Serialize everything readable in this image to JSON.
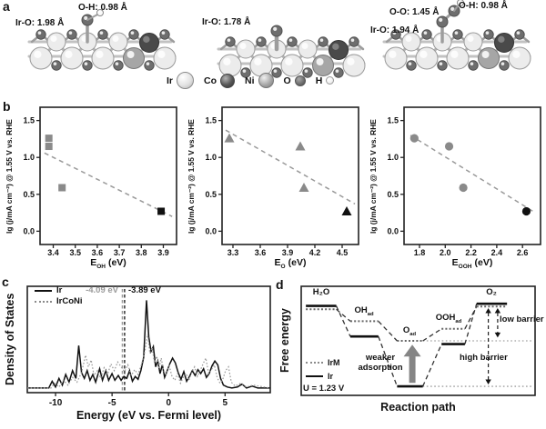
{
  "colors": {
    "point_gray": "#8a8a8a",
    "point_black": "#111111",
    "trend": "#999999",
    "frame": "#222222",
    "dos_ir": "#111111",
    "dos_ircon": "#999999",
    "annotation_gray": "#9a9a9a",
    "arrow_gray": "#858585"
  },
  "panel_a": {
    "label": "a",
    "structures": [
      {
        "adsorbate": "OH",
        "labels": [
          "O-H: 0.98 Å",
          "Ir-O: 1.98 Å"
        ]
      },
      {
        "adsorbate": "O",
        "labels": [
          "Ir-O: 1.78 Å"
        ]
      },
      {
        "adsorbate": "OOH",
        "labels": [
          "O-O: 1.45 Å",
          "O-H: 0.98 Å",
          "Ir-O: 1.94 Å"
        ]
      }
    ],
    "legend": [
      {
        "symbol": "Ir"
      },
      {
        "symbol": "Co"
      },
      {
        "symbol": "Ni"
      },
      {
        "symbol": "O"
      },
      {
        "symbol": "H"
      }
    ]
  },
  "panel_b": {
    "label": "b",
    "ylabel": "lg (j/mA cm⁻²) @ 1.55 V vs. RHE",
    "plots": [
      {
        "xlabel": {
          "main": "E",
          "sub": "OH",
          "unit": "(eV)"
        }
      },
      {
        "xlabel": {
          "main": "E",
          "sub": "O",
          "unit": "(eV)"
        }
      },
      {
        "xlabel": {
          "main": "E",
          "sub": "OOH",
          "unit": "(eV)"
        }
      }
    ]
  },
  "panel_c": {
    "label": "c",
    "xlabel": "Energy (eV vs. Fermi level)",
    "ylabel": "Density of States",
    "legend": [
      "Ir",
      "IrCoNi"
    ],
    "annotations": [
      "-4.09 eV",
      "-3.89 eV"
    ]
  },
  "panel_d": {
    "label": "d",
    "xlabel": "Reaction path",
    "ylabel": "Free energy",
    "legend": [
      {
        "label": "IrM"
      },
      {
        "label": "Ir"
      }
    ],
    "potential": "U = 1.23 V",
    "species": [
      {
        "main": "H₂O",
        "sub": ""
      },
      {
        "main": "OH",
        "sub": "ad"
      },
      {
        "main": "O",
        "sub": "ad"
      },
      {
        "main": "OOH",
        "sub": "ad"
      },
      {
        "main": "O₂",
        "sub": ""
      }
    ],
    "annotations": {
      "weaker": "weaker adsorption",
      "low": "low barrier",
      "high": "high barrier"
    }
  },
  "chart_data": [
    {
      "id": "scatter-eoh",
      "type": "scatter",
      "marker": "square",
      "xlabel": "E_OH (eV)",
      "ylabel": "lg (j/mA cm-2) @ 1.55 V vs. RHE",
      "xlim": [
        3.34,
        3.96
      ],
      "ylim": [
        -0.18,
        1.68
      ],
      "xticks": [
        3.4,
        3.5,
        3.6,
        3.7,
        3.8,
        3.9
      ],
      "yticks": [
        0.0,
        0.5,
        1.0,
        1.5
      ],
      "points": [
        {
          "x": 3.38,
          "y": 1.26,
          "color": "gray"
        },
        {
          "x": 3.38,
          "y": 1.15,
          "color": "gray"
        },
        {
          "x": 3.44,
          "y": 0.59,
          "color": "gray"
        },
        {
          "x": 3.89,
          "y": 0.27,
          "color": "black"
        }
      ],
      "trend": {
        "x1": 3.36,
        "y1": 1.06,
        "x2": 3.94,
        "y2": 0.2
      }
    },
    {
      "id": "scatter-eo",
      "type": "scatter",
      "marker": "triangle",
      "xlabel": "E_O (eV)",
      "ylabel": "lg (j/mA cm-2) @ 1.55 V vs. RHE",
      "xlim": [
        3.18,
        4.68
      ],
      "ylim": [
        -0.18,
        1.68
      ],
      "xticks": [
        3.3,
        3.6,
        3.9,
        4.2,
        4.5
      ],
      "yticks": [
        0.0,
        0.5,
        1.0,
        1.5
      ],
      "points": [
        {
          "x": 3.26,
          "y": 1.26,
          "color": "gray"
        },
        {
          "x": 4.04,
          "y": 1.15,
          "color": "gray"
        },
        {
          "x": 4.08,
          "y": 0.59,
          "color": "gray"
        },
        {
          "x": 4.55,
          "y": 0.27,
          "color": "black"
        }
      ],
      "trend": {
        "x1": 3.22,
        "y1": 1.37,
        "x2": 4.64,
        "y2": 0.37
      }
    },
    {
      "id": "scatter-eooh",
      "type": "scatter",
      "marker": "circle",
      "xlabel": "E_OOH (eV)",
      "ylabel": "lg (j/mA cm-2) @ 1.55 V vs. RHE",
      "xlim": [
        1.68,
        2.74
      ],
      "ylim": [
        -0.18,
        1.68
      ],
      "xticks": [
        1.8,
        2.0,
        2.2,
        2.4,
        2.6
      ],
      "yticks": [
        0.0,
        0.5,
        1.0,
        1.5
      ],
      "points": [
        {
          "x": 1.76,
          "y": 1.26,
          "color": "gray"
        },
        {
          "x": 2.03,
          "y": 1.15,
          "color": "gray"
        },
        {
          "x": 2.14,
          "y": 0.59,
          "color": "gray"
        },
        {
          "x": 2.63,
          "y": 0.27,
          "color": "black"
        }
      ],
      "trend": {
        "x1": 1.73,
        "y1": 1.3,
        "x2": 2.68,
        "y2": 0.27
      }
    },
    {
      "id": "dos",
      "type": "line",
      "xlabel": "Energy (eV vs. Fermi level)",
      "ylabel": "Density of States",
      "xlim": [
        -12.5,
        9
      ],
      "xticks": [
        -10,
        -5,
        0,
        5
      ],
      "vlines": [
        {
          "x": -4.09,
          "color": "#9a9a9a",
          "label": "-4.09 eV"
        },
        {
          "x": -3.89,
          "color": "#222222",
          "label": "-3.89 eV"
        }
      ],
      "series": [
        {
          "name": "Ir",
          "style": "solid",
          "points": [
            [
              -12.5,
              0.02
            ],
            [
              -10.6,
              0.02
            ],
            [
              -10.3,
              0.09
            ],
            [
              -10,
              0.03
            ],
            [
              -9.7,
              0.12
            ],
            [
              -9.4,
              0.05
            ],
            [
              -9.1,
              0.16
            ],
            [
              -8.8,
              0.08
            ],
            [
              -8.5,
              0.2
            ],
            [
              -8.2,
              0.12
            ],
            [
              -7.95,
              0.46
            ],
            [
              -7.7,
              0.18
            ],
            [
              -7.45,
              0.12
            ],
            [
              -7.2,
              0.2
            ],
            [
              -6.95,
              0.1
            ],
            [
              -6.7,
              0.16
            ],
            [
              -6.45,
              0.08
            ],
            [
              -6.1,
              0.22
            ],
            [
              -5.85,
              0.1
            ],
            [
              -5.55,
              0.2
            ],
            [
              -5.3,
              0.1
            ],
            [
              -5,
              0.17
            ],
            [
              -4.75,
              0.1
            ],
            [
              -4.45,
              0.15
            ],
            [
              -4.2,
              0.1
            ],
            [
              -3.95,
              0.14
            ],
            [
              -3.7,
              0.12
            ],
            [
              -3.45,
              0.2
            ],
            [
              -3.2,
              0.09
            ],
            [
              -2.95,
              0.14
            ],
            [
              -2.7,
              0.11
            ],
            [
              -2.45,
              0.2
            ],
            [
              -2.2,
              0.34
            ],
            [
              -1.95,
              0.93
            ],
            [
              -1.75,
              0.55
            ],
            [
              -1.55,
              0.4
            ],
            [
              -1.35,
              0.45
            ],
            [
              -1.15,
              0.24
            ],
            [
              -0.95,
              0.3
            ],
            [
              -0.75,
              0.17
            ],
            [
              -0.55,
              0.26
            ],
            [
              -0.35,
              0.13
            ],
            [
              -0.15,
              0.19
            ],
            [
              0.1,
              0.27
            ],
            [
              0.35,
              0.33
            ],
            [
              0.6,
              0.28
            ],
            [
              0.85,
              0.18
            ],
            [
              1.1,
              0.11
            ],
            [
              1.35,
              0.19
            ],
            [
              1.6,
              0.09
            ],
            [
              1.85,
              0.14
            ],
            [
              2.1,
              0.2
            ],
            [
              2.35,
              0.15
            ],
            [
              2.6,
              0.21
            ],
            [
              2.85,
              0.17
            ],
            [
              3.1,
              0.22
            ],
            [
              3.35,
              0.13
            ],
            [
              3.6,
              0.17
            ],
            [
              3.85,
              0.25
            ],
            [
              4.1,
              0.3
            ],
            [
              4.35,
              0.26
            ],
            [
              4.6,
              0.12
            ],
            [
              4.85,
              0.05
            ],
            [
              5.2,
              0.03
            ],
            [
              5.6,
              0.02
            ],
            [
              6.1,
              0.03
            ],
            [
              6.5,
              0.06
            ],
            [
              6.9,
              0.02
            ],
            [
              7.4,
              0.04
            ],
            [
              7.9,
              0.02
            ],
            [
              8.95,
              0.02
            ]
          ]
        },
        {
          "name": "IrCoNi",
          "style": "dotted",
          "points": [
            [
              -12.5,
              0.02
            ],
            [
              -10.4,
              0.02
            ],
            [
              -10.1,
              0.07
            ],
            [
              -9.7,
              0.03
            ],
            [
              -9.3,
              0.1
            ],
            [
              -8.9,
              0.05
            ],
            [
              -8.5,
              0.13
            ],
            [
              -8.1,
              0.08
            ],
            [
              -7.7,
              0.18
            ],
            [
              -7.35,
              0.36
            ],
            [
              -7.1,
              0.24
            ],
            [
              -6.85,
              0.31
            ],
            [
              -6.6,
              0.15
            ],
            [
              -6.3,
              0.2
            ],
            [
              -6,
              0.12
            ],
            [
              -5.7,
              0.23
            ],
            [
              -5.4,
              0.16
            ],
            [
              -5.1,
              0.27
            ],
            [
              -4.8,
              0.2
            ],
            [
              -4.5,
              0.29
            ],
            [
              -4.2,
              0.24
            ],
            [
              -3.9,
              0.19
            ],
            [
              -3.6,
              0.26
            ],
            [
              -3.3,
              0.15
            ],
            [
              -3,
              0.21
            ],
            [
              -2.7,
              0.16
            ],
            [
              -2.4,
              0.26
            ],
            [
              -2.1,
              0.4
            ],
            [
              -1.85,
              0.58
            ],
            [
              -1.65,
              0.38
            ],
            [
              -1.45,
              0.44
            ],
            [
              -1.25,
              0.28
            ],
            [
              -1.05,
              0.35
            ],
            [
              -0.85,
              0.22
            ],
            [
              -0.65,
              0.33
            ],
            [
              -0.45,
              0.2
            ],
            [
              -0.2,
              0.16
            ],
            [
              0.05,
              0.25
            ],
            [
              0.3,
              0.14
            ],
            [
              0.55,
              0.1
            ],
            [
              0.8,
              0.17
            ],
            [
              1.05,
              0.07
            ],
            [
              1.3,
              0.13
            ],
            [
              1.55,
              0.17
            ],
            [
              1.8,
              0.1
            ],
            [
              2.05,
              0.18
            ],
            [
              2.3,
              0.24
            ],
            [
              2.55,
              0.14
            ],
            [
              2.8,
              0.2
            ],
            [
              3.05,
              0.27
            ],
            [
              3.3,
              0.33
            ],
            [
              3.55,
              0.17
            ],
            [
              3.8,
              0.21
            ],
            [
              4.05,
              0.26
            ],
            [
              4.3,
              0.13
            ],
            [
              4.55,
              0.07
            ],
            [
              4.8,
              0.11
            ],
            [
              5.05,
              0.2
            ],
            [
              5.3,
              0.24
            ],
            [
              5.55,
              0.08
            ],
            [
              5.9,
              0.04
            ],
            [
              6.4,
              0.07
            ],
            [
              6.9,
              0.03
            ],
            [
              7.5,
              0.05
            ],
            [
              8.95,
              0.02
            ]
          ]
        }
      ]
    },
    {
      "id": "energy",
      "type": "line",
      "xlabel": "Reaction path",
      "ylabel": "Free energy",
      "potential": "U = 1.23 V",
      "species": [
        "H2O",
        "OH_ad",
        "O_ad",
        "OOH_ad",
        "O2"
      ],
      "series": [
        {
          "name": "Ir",
          "style": "solid",
          "levels": [
            [
              0.02,
              0.15,
              0.82
            ],
            [
              0.21,
              0.33,
              0.54
            ],
            [
              0.41,
              0.52,
              0.083
            ],
            [
              0.6,
              0.7,
              0.47
            ],
            [
              0.75,
              0.88,
              0.84
            ]
          ]
        },
        {
          "name": "IrM",
          "style": "dotted",
          "levels": [
            [
              0.02,
              0.15,
              0.79
            ],
            [
              0.21,
              0.33,
              0.68
            ],
            [
              0.41,
              0.52,
              0.5
            ],
            [
              0.6,
              0.7,
              0.61
            ],
            [
              0.75,
              0.88,
              0.815
            ]
          ]
        }
      ]
    }
  ]
}
